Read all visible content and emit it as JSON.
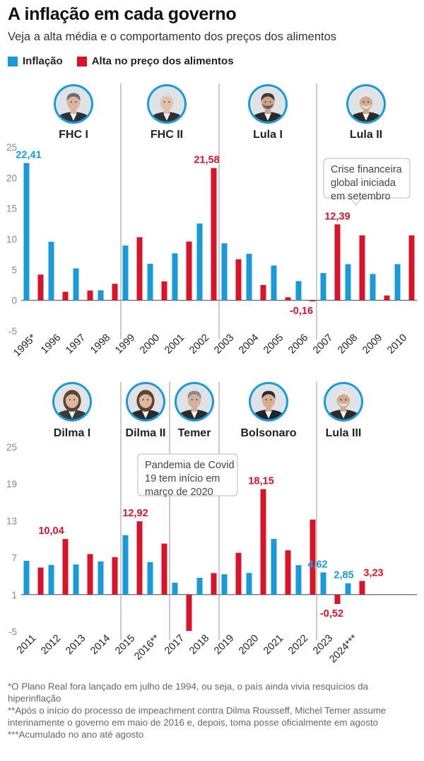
{
  "title": "A inflação em cada governo",
  "subtitle": "Veja a alta média e o comportamento dos preços dos alimentos",
  "colors": {
    "inflation": "#1a9bd7",
    "food": "#d7142a",
    "axis": "#888888",
    "divider": "#999999",
    "label_blue": "#1a9bd7",
    "label_red": "#d7142a"
  },
  "legend": [
    {
      "name": "Inflação",
      "color": "#1a9bd7"
    },
    {
      "name": "Alta no preço dos alimentos",
      "color": "#d7142a"
    }
  ],
  "chart_data": [
    {
      "type": "bar",
      "categories": [
        "1995*",
        "1996",
        "1997",
        "1998",
        "1999",
        "2000",
        "2001",
        "2002",
        "2003",
        "2004",
        "2005",
        "2006",
        "2007",
        "2008",
        "2009",
        "2010"
      ],
      "series": [
        {
          "name": "Inflação",
          "values": [
            22.41,
            9.56,
            5.22,
            1.65,
            8.94,
            5.97,
            7.67,
            12.53,
            9.3,
            7.6,
            5.69,
            3.14,
            4.46,
            5.9,
            4.31,
            5.91
          ]
        },
        {
          "name": "Alta no preço dos alimentos",
          "values": [
            4.2,
            1.4,
            1.6,
            2.7,
            10.3,
            3.1,
            9.6,
            21.58,
            6.7,
            2.5,
            0.5,
            -0.16,
            12.39,
            10.6,
            0.8,
            10.6
          ]
        }
      ],
      "yticks": [
        "25",
        "20",
        "15",
        "10",
        "5",
        "0",
        "-5"
      ],
      "ylim": [
        -5,
        25
      ],
      "data_labels": [
        {
          "text": "22,41",
          "series": 0,
          "index": 0
        },
        {
          "text": "21,58",
          "series": 1,
          "index": 7
        },
        {
          "text": "-0,16",
          "series": 1,
          "index": 11
        },
        {
          "text": "12,39",
          "series": 1,
          "index": 12
        }
      ],
      "governments": [
        "FHC I",
        "FHC II",
        "Lula I",
        "Lula II"
      ],
      "annotation": [
        "Crise financeira",
        "global iniciada",
        "em setembro"
      ]
    },
    {
      "type": "bar",
      "categories": [
        "2011",
        "2012",
        "2013",
        "2014",
        "2015",
        "2016**",
        "2017",
        "2018",
        "2019",
        "2020",
        "2021",
        "2022",
        "2023",
        "2024***"
      ],
      "series": [
        {
          "name": "Inflação",
          "values": [
            6.5,
            5.84,
            5.91,
            6.41,
            10.67,
            6.29,
            2.95,
            3.75,
            4.31,
            4.52,
            10.06,
            5.79,
            4.62,
            2.85
          ]
        },
        {
          "name": "Alta no preço dos alimentos",
          "values": [
            5.4,
            10.04,
            7.6,
            7.1,
            12.92,
            9.3,
            -4.9,
            4.5,
            7.8,
            18.15,
            8.2,
            13.2,
            -0.52,
            3.23
          ]
        }
      ],
      "yticks": [
        "25",
        "19",
        "13",
        "7",
        "1",
        "-5"
      ],
      "ylim": [
        -5,
        25
      ],
      "data_labels": [
        {
          "text": "10,04",
          "series": 1,
          "index": 1
        },
        {
          "text": "12,92",
          "series": 1,
          "index": 4
        },
        {
          "text": "18,15",
          "series": 1,
          "index": 9
        },
        {
          "text": "4,62",
          "series": 0,
          "index": 12
        },
        {
          "text": "-0,52",
          "series": 1,
          "index": 12
        },
        {
          "text": "2,85",
          "series": 0,
          "index": 13
        },
        {
          "text": "3,23",
          "series": 1,
          "index": 13
        }
      ],
      "governments": [
        "Dilma I",
        "Dilma II",
        "Temer",
        "Bolsonaro",
        "Lula III"
      ],
      "annotation": [
        "Pandemia de Covid",
        "19 tem início em",
        "março de 2020"
      ]
    }
  ],
  "footnotes": [
    "*O Plano Real fora lançado em julho de 1994, ou seja, o país ainda vivia resquícios da hiperinflação",
    "**Após o início do processo de impeachment contra Dilma Rousseff, Michel Temer assume interinamente o governo em maio de 2016 e, depois, toma posse oficialmente em agosto",
    "***Acumulado no ano até agosto"
  ]
}
